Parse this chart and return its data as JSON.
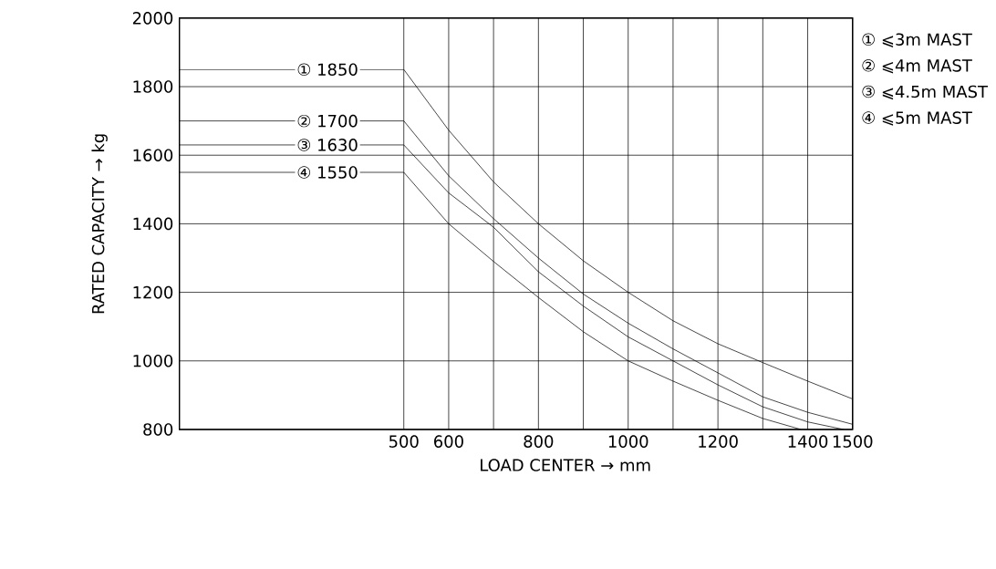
{
  "chart_data": {
    "type": "line",
    "xlabel": "LOAD CENTER → mm",
    "ylabel": "RATED CAPACITY → kg",
    "xlim": [
      0,
      1500
    ],
    "ylim": [
      800,
      2000
    ],
    "xticks": [
      500,
      600,
      {
        "value": 700,
        "label": null
      },
      800,
      {
        "value": 900,
        "label": null
      },
      1000,
      {
        "value": 1100,
        "label": null
      },
      1200,
      {
        "value": 1300,
        "label": null
      },
      1400,
      1500
    ],
    "yticks": [
      800,
      1000,
      1200,
      1400,
      1600,
      1800,
      2000
    ],
    "grid": true,
    "legend": "top right",
    "marker": "none",
    "line_style": "solid",
    "series": [
      {
        "name": "① ⩽3m MAST",
        "color": "#000000",
        "x": [
          0,
          500,
          600,
          700,
          800,
          900,
          1000,
          1100,
          1200,
          1300,
          1400,
          1500
        ],
        "values": [
          1850,
          1850,
          1673,
          1522,
          1400,
          1292,
          1200,
          1117,
          1050,
          995,
          941,
          889
        ]
      },
      {
        "name": "② ⩽4m MAST",
        "color": "#000000",
        "x": [
          0,
          500,
          600,
          700,
          800,
          900,
          1000,
          1100,
          1200,
          1300,
          1400,
          1500
        ],
        "values": [
          1700,
          1700,
          1540,
          1415,
          1300,
          1195,
          1110,
          1035,
          965,
          895,
          850,
          815
        ]
      },
      {
        "name": "③ ⩽4.5m MAST",
        "color": "#000000",
        "x": [
          0,
          500,
          600,
          700,
          800,
          900,
          1000,
          1100,
          1200,
          1300,
          1400,
          1480
        ],
        "values": [
          1630,
          1630,
          1490,
          1390,
          1260,
          1160,
          1070,
          1000,
          930,
          866,
          822,
          800
        ]
      },
      {
        "name": "④ ⩽5m MAST",
        "color": "#000000",
        "x": [
          0,
          500,
          600,
          700,
          800,
          900,
          1000,
          1100,
          1200,
          1300,
          1385
        ],
        "values": [
          1550,
          1550,
          1400,
          1290,
          1185,
          1085,
          1000,
          941,
          885,
          832,
          800
        ]
      }
    ],
    "annotations": [
      {
        "text": "① 1850",
        "y": 1850
      },
      {
        "text": "② 1700",
        "y": 1700
      },
      {
        "text": "③ 1630",
        "y": 1630
      },
      {
        "text": "④ 1550",
        "y": 1550
      }
    ]
  }
}
